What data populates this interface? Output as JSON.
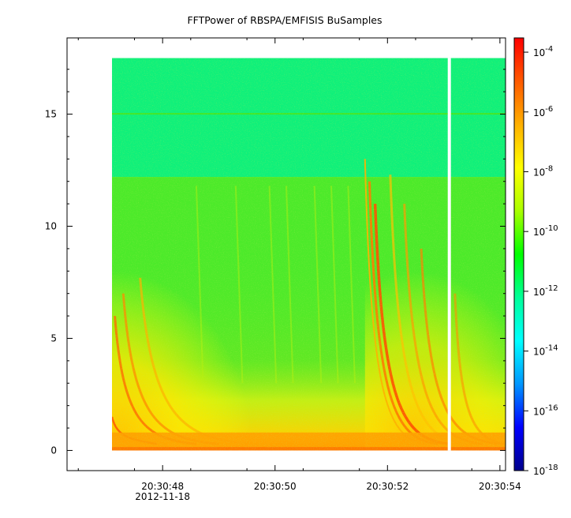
{
  "chart_data": {
    "type": "heatmap",
    "title": "FFTPower of RBSPA/EMFISIS  BuSamples",
    "xlabel": "",
    "ylabel": "",
    "x_ticks": [
      {
        "value": "20:30:48",
        "sub": "2012-11-18"
      },
      {
        "value": "20:30:50",
        "sub": ""
      },
      {
        "value": "20:30:52",
        "sub": ""
      },
      {
        "value": "20:30:54",
        "sub": ""
      }
    ],
    "y_ticks": [
      "0",
      "5",
      "10",
      "15"
    ],
    "ylim": [
      -0.9,
      18.4
    ],
    "xlim_seconds": [
      46.3,
      54.1
    ],
    "data_x_range_seconds": [
      47.1,
      54.1
    ],
    "data_y_range": [
      0,
      17.5
    ],
    "data_gap_seconds": 53.1,
    "colorbar": {
      "scale": "log",
      "range": [
        1e-18,
        0.0003
      ],
      "ticks": [
        {
          "base": "10",
          "exp": "-4"
        },
        {
          "base": "10",
          "exp": "-6"
        },
        {
          "base": "10",
          "exp": "-8"
        },
        {
          "base": "10",
          "exp": "-10"
        },
        {
          "base": "10",
          "exp": "-12"
        },
        {
          "base": "10",
          "exp": "-14"
        },
        {
          "base": "10",
          "exp": "-16"
        },
        {
          "base": "10",
          "exp": "-18"
        }
      ],
      "colors": [
        "#00008c",
        "#0000ff",
        "#0096ff",
        "#00ffff",
        "#00ff99",
        "#00ff00",
        "#aaff00",
        "#ffff00",
        "#ffb000",
        "#ff5a00",
        "#ff0000"
      ]
    },
    "grid": false,
    "legend": "none"
  }
}
